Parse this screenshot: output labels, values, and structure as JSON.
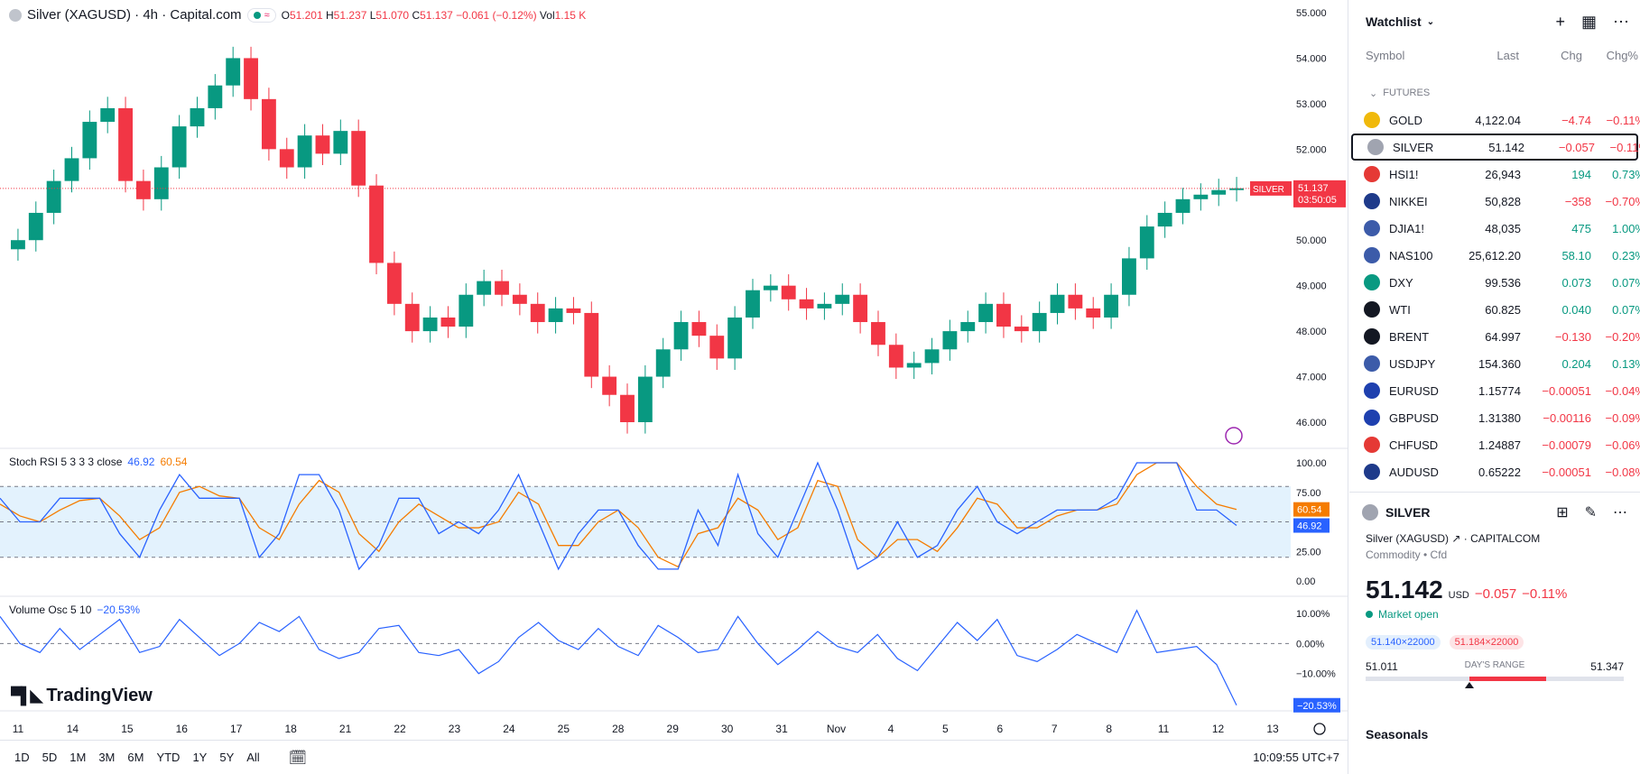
{
  "legend": {
    "symbol": "Silver (XAGUSD) · 4h · Capital.com",
    "o_label": "O",
    "o": "51.201",
    "h_label": "H",
    "h": "51.237",
    "l_label": "L",
    "l": "51.070",
    "c_label": "C",
    "c": "51.137",
    "change": "−0.061 (−0.12%)",
    "vol_label": "Vol",
    "vol": "1.15 K"
  },
  "price_axis": [
    "55.000",
    "54.000",
    "53.000",
    "52.000",
    "51.000",
    "50.000",
    "49.000",
    "48.000",
    "47.000",
    "46.000"
  ],
  "price_tag": {
    "symbol": "SILVER",
    "price": "51.137",
    "countdown": "03:50:05"
  },
  "stoch": {
    "title": "Stoch RSI 5 3 3 3 close",
    "k": "46.92",
    "d": "60.54",
    "axis": [
      "100.00",
      "75.00",
      "50.00",
      "25.00",
      "0.00"
    ],
    "k_tag": "46.92",
    "d_tag": "60.54"
  },
  "volosc": {
    "title": "Volume Osc 5 10",
    "value": "−20.53%",
    "axis": [
      "10.00%",
      "0.00%",
      "−10.00%"
    ],
    "tag": "−20.53%"
  },
  "time_axis": [
    "11",
    "14",
    "15",
    "16",
    "17",
    "18",
    "21",
    "22",
    "23",
    "24",
    "25",
    "28",
    "29",
    "30",
    "31",
    "Nov",
    "4",
    "5",
    "6",
    "7",
    "8",
    "11",
    "12",
    "13"
  ],
  "logo": "TradingView",
  "timeframes": [
    "1D",
    "5D",
    "1M",
    "3M",
    "6M",
    "YTD",
    "1Y",
    "5Y",
    "All"
  ],
  "clock": "10:09:55 UTC+7",
  "watchlist": {
    "title": "Watchlist",
    "cols": {
      "symbol": "Symbol",
      "last": "Last",
      "chg": "Chg",
      "pct": "Chg%"
    },
    "section": "FUTURES",
    "rows": [
      {
        "sym": "GOLD",
        "last": "4,122.04",
        "chg": "−4.74",
        "pct": "−0.11%",
        "dir": "dn",
        "color": "#f0b90b"
      },
      {
        "sym": "SILVER",
        "last": "51.142",
        "chg": "−0.057",
        "pct": "−0.11%",
        "dir": "dn",
        "color": "#a0a4b0"
      },
      {
        "sym": "HSI1!",
        "last": "26,943",
        "chg": "194",
        "pct": "0.73%",
        "dir": "up",
        "color": "#e53935"
      },
      {
        "sym": "NIKKEI",
        "last": "50,828",
        "chg": "−358",
        "pct": "−0.70%",
        "dir": "dn",
        "color": "#1e3a8a"
      },
      {
        "sym": "DJIA1!",
        "last": "48,035",
        "chg": "475",
        "pct": "1.00%",
        "dir": "up",
        "color": "#3c5ba9"
      },
      {
        "sym": "NAS100",
        "last": "25,612.20",
        "chg": "58.10",
        "pct": "0.23%",
        "dir": "up",
        "color": "#3c5ba9"
      },
      {
        "sym": "DXY",
        "last": "99.536",
        "chg": "0.073",
        "pct": "0.07%",
        "dir": "up",
        "color": "#089981"
      },
      {
        "sym": "WTI",
        "last": "60.825",
        "chg": "0.040",
        "pct": "0.07%",
        "dir": "up",
        "color": "#131722"
      },
      {
        "sym": "BRENT",
        "last": "64.997",
        "chg": "−0.130",
        "pct": "−0.20%",
        "dir": "dn",
        "color": "#131722"
      },
      {
        "sym": "USDJPY",
        "last": "154.360",
        "chg": "0.204",
        "pct": "0.13%",
        "dir": "up",
        "color": "#3c5ba9"
      },
      {
        "sym": "EURUSD",
        "last": "1.15774",
        "chg": "−0.00051",
        "pct": "−0.04%",
        "dir": "dn",
        "color": "#1e40af"
      },
      {
        "sym": "GBPUSD",
        "last": "1.31380",
        "chg": "−0.00116",
        "pct": "−0.09%",
        "dir": "dn",
        "color": "#1e40af"
      },
      {
        "sym": "CHFUSD",
        "last": "1.24887",
        "chg": "−0.00079",
        "pct": "−0.06%",
        "dir": "dn",
        "color": "#e53935"
      },
      {
        "sym": "AUDUSD",
        "last": "0.65222",
        "chg": "−0.00051",
        "pct": "−0.08%",
        "dir": "dn",
        "color": "#1e3a8a"
      }
    ]
  },
  "detail": {
    "symbol": "SILVER",
    "name": "Silver (XAGUSD)",
    "exchange": "CAPITALCOM",
    "type": "Commodity • Cfd",
    "price": "51.142",
    "currency": "USD",
    "change": "−0.057",
    "pct": "−0.11%",
    "market": "Market open",
    "bid": "51.140×22000",
    "ask": "51.184×22000",
    "low": "51.011",
    "range_label": "DAY'S RANGE",
    "high": "51.347",
    "range_position": 0.34,
    "seasonals": "Seasonals"
  },
  "colors": {
    "up": "#089981",
    "down": "#f23645",
    "stoch_k": "#2962ff",
    "stoch_d": "#f57c00",
    "band": "#e3f2fd"
  },
  "chart_data": {
    "type": "candlestick",
    "title": "Silver (XAGUSD) · 4h · Capital.com",
    "ylim": [
      45.5,
      55.2
    ],
    "x": [
      "11",
      "14",
      "15",
      "16",
      "17",
      "18",
      "21",
      "22",
      "23",
      "24",
      "25",
      "28",
      "29",
      "30",
      "31",
      "Nov",
      "4",
      "5",
      "6",
      "7",
      "8",
      "11",
      "12",
      "13"
    ],
    "closes": [
      50.0,
      50.6,
      51.3,
      51.8,
      52.6,
      52.9,
      51.3,
      50.9,
      51.6,
      52.5,
      52.9,
      53.4,
      54.0,
      53.1,
      52.0,
      51.6,
      52.3,
      51.9,
      52.4,
      51.2,
      49.5,
      48.6,
      48.0,
      48.3,
      48.1,
      48.8,
      49.1,
      48.8,
      48.6,
      48.2,
      48.5,
      48.4,
      47.0,
      46.6,
      46.0,
      47.0,
      47.6,
      48.2,
      47.9,
      47.4,
      48.3,
      48.9,
      49.0,
      48.7,
      48.5,
      48.6,
      48.8,
      48.2,
      47.7,
      47.2,
      47.3,
      47.6,
      48.0,
      48.2,
      48.6,
      48.1,
      48.0,
      48.4,
      48.8,
      48.5,
      48.3,
      48.8,
      49.6,
      50.3,
      50.6,
      50.9,
      51.0,
      51.1,
      51.14
    ],
    "stoch_k": [
      70,
      50,
      50,
      70,
      70,
      70,
      40,
      20,
      60,
      90,
      70,
      70,
      70,
      20,
      40,
      90,
      90,
      60,
      10,
      30,
      70,
      70,
      40,
      50,
      40,
      60,
      90,
      50,
      10,
      40,
      60,
      60,
      30,
      10,
      10,
      60,
      30,
      90,
      40,
      20,
      60,
      100,
      60,
      10,
      20,
      50,
      20,
      30,
      60,
      80,
      50,
      40,
      50,
      60,
      60,
      60,
      70,
      100,
      100,
      100,
      60,
      60,
      46.92
    ],
    "stoch_d": [
      65,
      55,
      50,
      60,
      68,
      70,
      55,
      35,
      45,
      75,
      80,
      72,
      70,
      45,
      35,
      65,
      85,
      75,
      40,
      25,
      50,
      65,
      55,
      45,
      45,
      50,
      75,
      65,
      30,
      30,
      50,
      60,
      45,
      20,
      12,
      40,
      45,
      70,
      60,
      35,
      45,
      85,
      80,
      35,
      20,
      35,
      35,
      25,
      45,
      70,
      65,
      45,
      45,
      55,
      60,
      60,
      65,
      90,
      100,
      100,
      80,
      65,
      60.54
    ],
    "volosc": [
      9,
      0,
      -3,
      5,
      -2,
      3,
      8,
      -3,
      -1,
      8,
      2,
      -4,
      0,
      7,
      4,
      9,
      -2,
      -5,
      -3,
      5,
      6,
      -3,
      -4,
      -2,
      -10,
      -6,
      2,
      7,
      1,
      -2,
      5,
      -1,
      -4,
      6,
      2,
      -3,
      -2,
      9,
      0,
      -7,
      -2,
      4,
      -1,
      -3,
      3,
      -5,
      -9,
      -1,
      7,
      1,
      8,
      -4,
      -6,
      -2,
      3,
      0,
      -3,
      11,
      -3,
      -2,
      -1,
      -7,
      -20.53
    ]
  }
}
